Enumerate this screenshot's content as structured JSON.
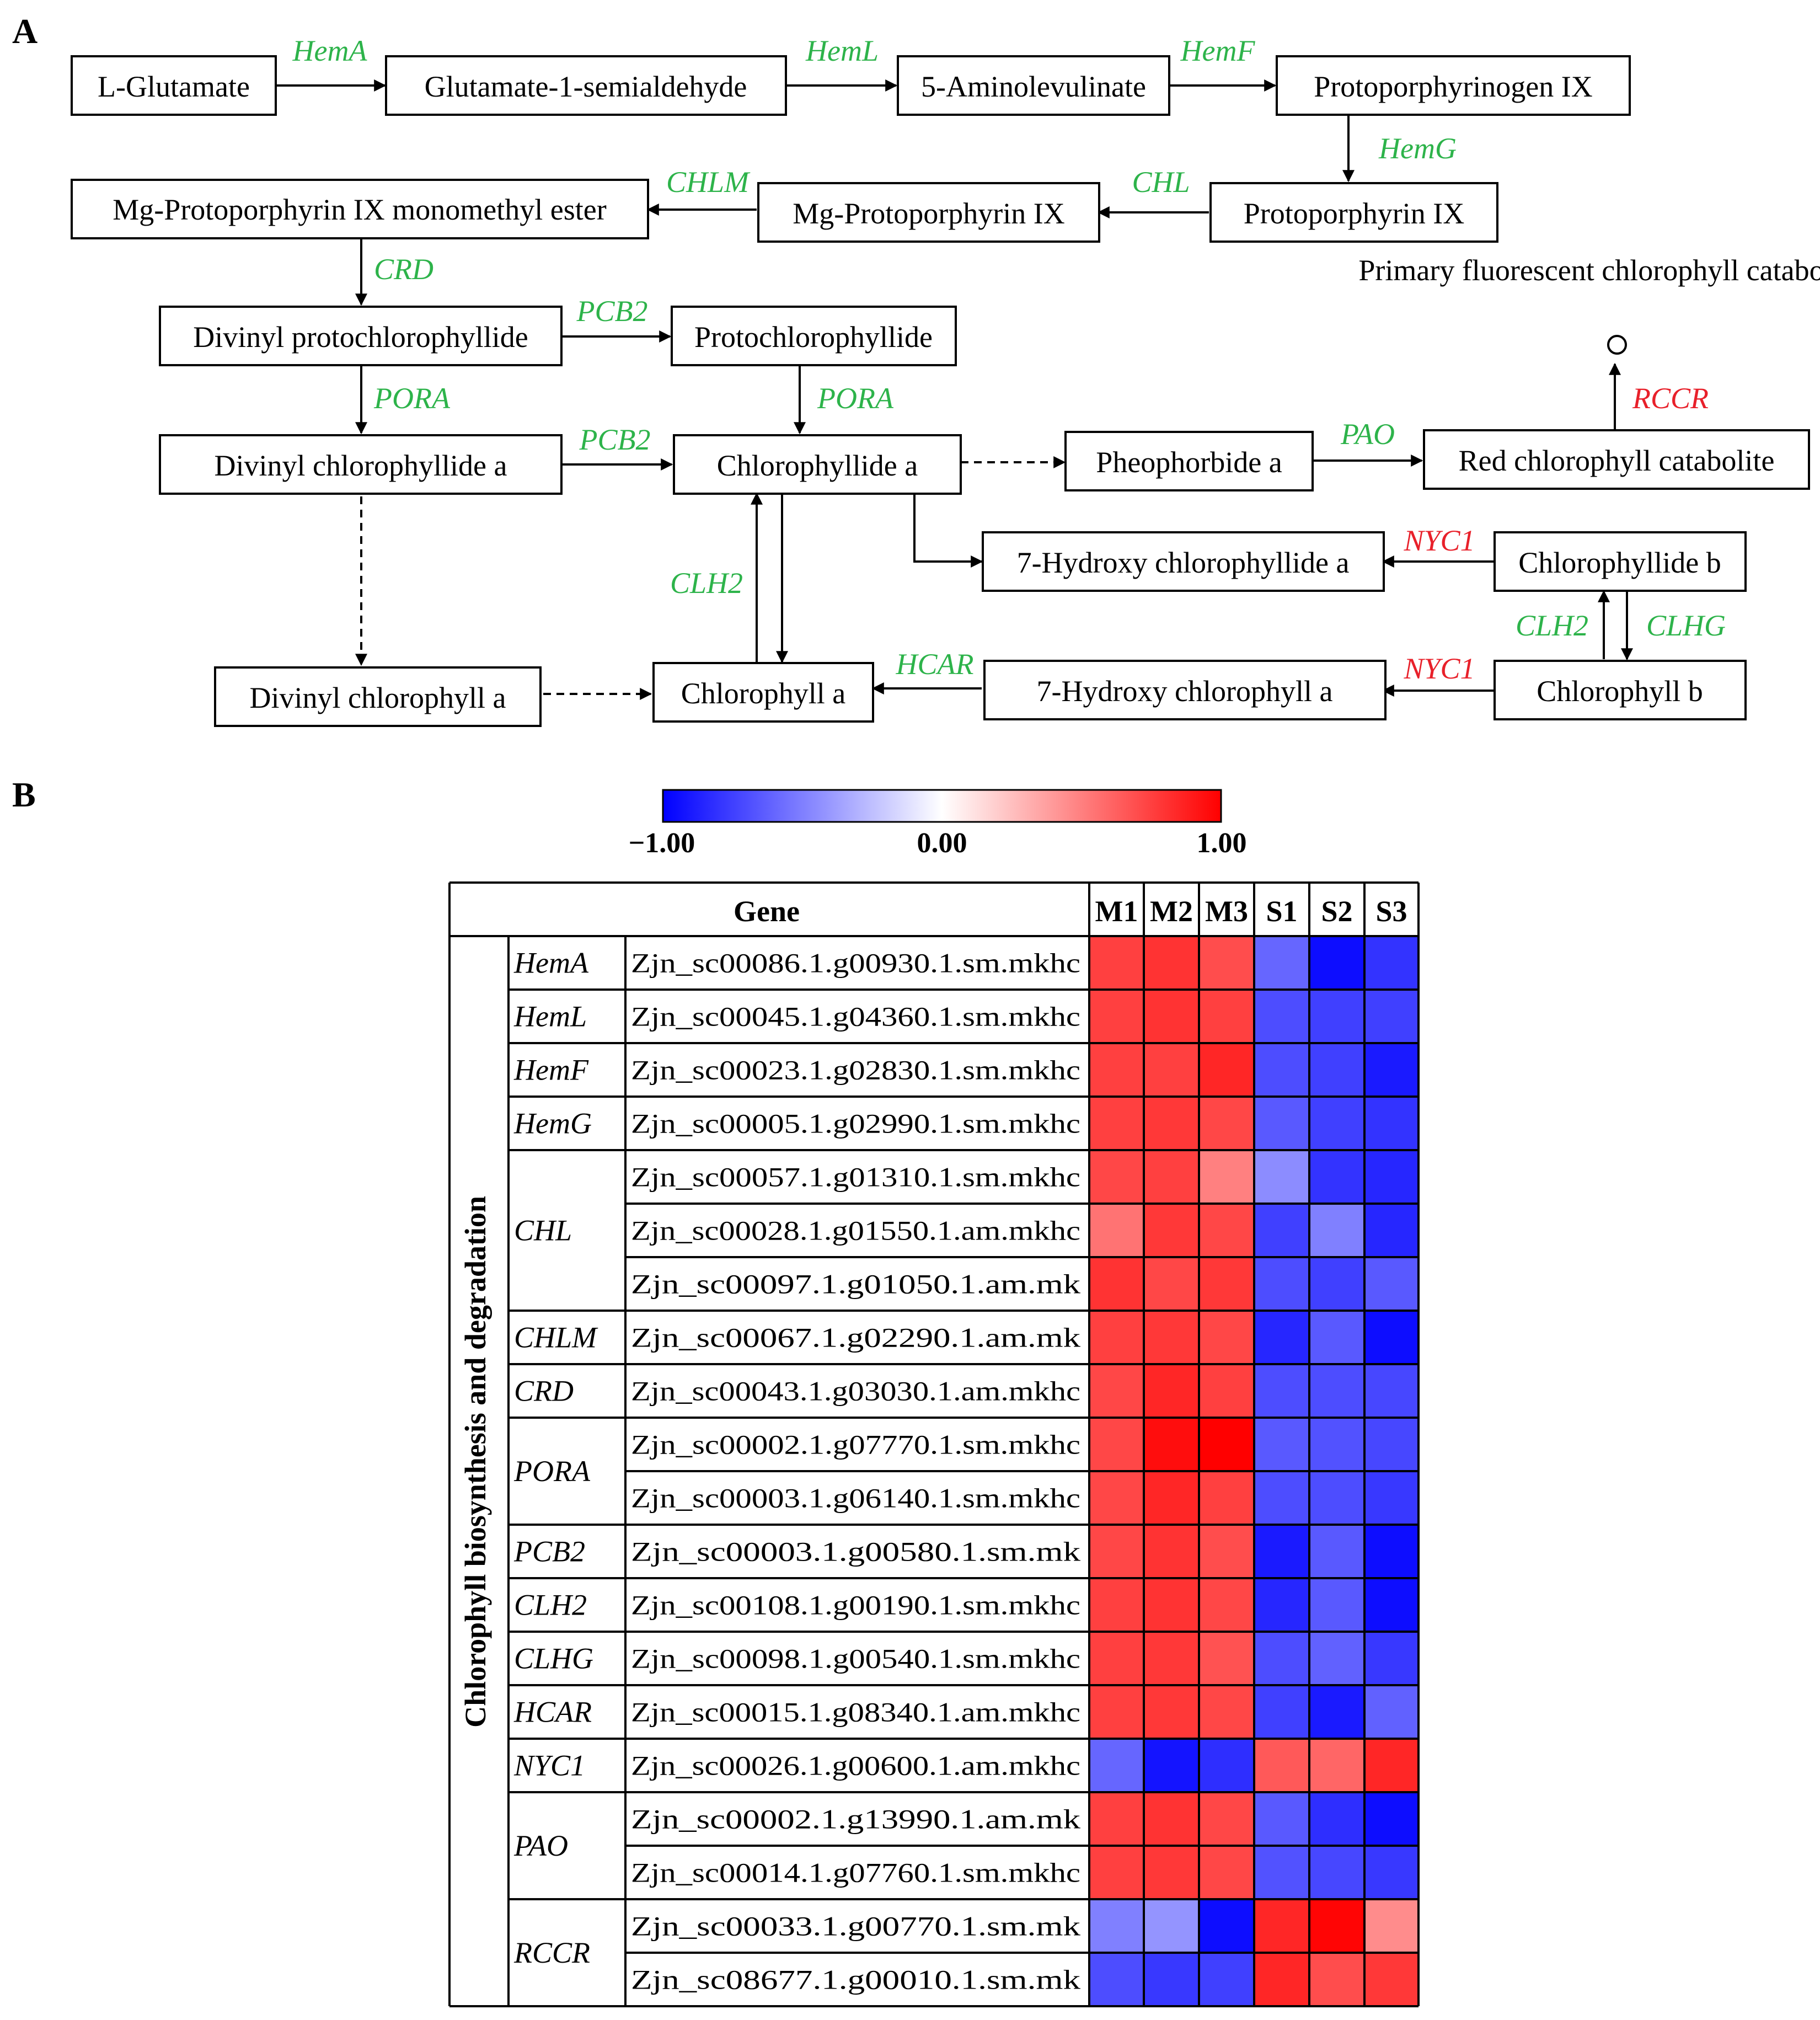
{
  "panels": {
    "a": "A",
    "b": "B"
  },
  "pathway": {
    "nodes": {
      "glu": "L-Glutamate",
      "gsa": "Glutamate-1-semialdehyde",
      "ala": "5-Aminolevulinate",
      "protogen": "Protoporphyrinogen IX",
      "proto": "Protoporphyrin IX",
      "mgproto": "Mg-Protoporphyrin IX",
      "mgprotome": "Mg-Protoporphyrin IX monomethyl ester",
      "dvpchlide": "Divinyl protochlorophyllide",
      "pchlide": "Protochlorophyllide",
      "dvchlidea": "Divinyl chlorophyllide a",
      "chlidea": "Chlorophyllide a",
      "pheo": "Pheophorbide a",
      "rcc": "Red chlorophyll catabolite",
      "pfcc": "Primary fluorescent chlorophyll catabolite",
      "hchlidea": "7-Hydroxy chlorophyllide a",
      "chlideb": "Chlorophyllide b",
      "dvchla": "Divinyl chlorophyll a",
      "chla": "Chlorophyll a",
      "hchla": "7-Hydroxy chlorophyll a",
      "chlb": "Chlorophyll b"
    },
    "enzymes": {
      "hema": "HemA",
      "heml": "HemL",
      "hemf": "HemF",
      "hemg": "HemG",
      "chl": "CHL",
      "chlm": "CHLM",
      "crd": "CRD",
      "pcb2a": "PCB2",
      "pcb2b": "PCB2",
      "poraa": "PORA",
      "porab": "PORA",
      "pao": "PAO",
      "rccr": "RCCR",
      "nyc1a": "NYC1",
      "nyc1b": "NYC1",
      "clh2a": "CLH2",
      "clhga": "CLHG",
      "clh2b": "CLH2",
      "clhgb": "CLHG",
      "hcar": "HCAR"
    },
    "colors": {
      "green": "#2db34a",
      "red": "#e8202a"
    }
  },
  "heatmap": {
    "colorbar": {
      "min": -1.0,
      "mid": 0.0,
      "max": 1.0,
      "min_label": "−1.00",
      "mid_label": "0.00",
      "max_label": "1.00",
      "low_color": "#0000ff",
      "mid_color": "#ffffff",
      "high_color": "#ff0000"
    },
    "header": {
      "gene": "Gene",
      "samples": [
        "M1",
        "M2",
        "M3",
        "S1",
        "S2",
        "S3"
      ]
    },
    "side_label": "Chlorophyll biosynthesis and degradation",
    "groups": [
      {
        "gene": "HemA",
        "rows": [
          0
        ]
      },
      {
        "gene": "HemL",
        "rows": [
          1
        ]
      },
      {
        "gene": "HemF",
        "rows": [
          2
        ]
      },
      {
        "gene": "HemG",
        "rows": [
          3
        ]
      },
      {
        "gene": "CHL",
        "rows": [
          4,
          5,
          6
        ]
      },
      {
        "gene": "CHLM",
        "rows": [
          7
        ]
      },
      {
        "gene": "CRD",
        "rows": [
          8
        ]
      },
      {
        "gene": "PORA",
        "rows": [
          9,
          10
        ]
      },
      {
        "gene": "PCB2",
        "rows": [
          11
        ]
      },
      {
        "gene": "CLH2",
        "rows": [
          12
        ]
      },
      {
        "gene": "CLHG",
        "rows": [
          13
        ]
      },
      {
        "gene": "HCAR",
        "rows": [
          14
        ]
      },
      {
        "gene": "NYC1",
        "rows": [
          15
        ]
      },
      {
        "gene": "PAO",
        "rows": [
          16,
          17
        ]
      },
      {
        "gene": "RCCR",
        "rows": [
          18,
          19
        ]
      }
    ],
    "rows": [
      {
        "id": "Zjn_sc00086.1.g00930.1.sm.mkhc",
        "values": [
          0.75,
          0.8,
          0.7,
          -0.6,
          -0.95,
          -0.8
        ]
      },
      {
        "id": "Zjn_sc00045.1.g04360.1.sm.mkhc",
        "values": [
          0.75,
          0.8,
          0.75,
          -0.7,
          -0.75,
          -0.75
        ]
      },
      {
        "id": "Zjn_sc00023.1.g02830.1.sm.mkhc",
        "values": [
          0.75,
          0.75,
          0.85,
          -0.7,
          -0.75,
          -0.9
        ]
      },
      {
        "id": "Zjn_sc00005.1.g02990.1.sm.mkhc",
        "values": [
          0.75,
          0.78,
          0.72,
          -0.65,
          -0.75,
          -0.8
        ]
      },
      {
        "id": "Zjn_sc00057.1.g01310.1.sm.mkhc",
        "values": [
          0.72,
          0.75,
          0.5,
          -0.45,
          -0.8,
          -0.85
        ]
      },
      {
        "id": "Zjn_sc00028.1.g01550.1.am.mkhc",
        "values": [
          0.55,
          0.78,
          0.72,
          -0.75,
          -0.5,
          -0.85
        ]
      },
      {
        "id": "Zjn_sc00097.1.g01050.1.am.mk",
        "values": [
          0.8,
          0.72,
          0.78,
          -0.7,
          -0.75,
          -0.65
        ]
      },
      {
        "id": "Zjn_sc00067.1.g02290.1.am.mk",
        "values": [
          0.75,
          0.78,
          0.72,
          -0.85,
          -0.65,
          -0.95
        ]
      },
      {
        "id": "Zjn_sc00043.1.g03030.1.am.mkhc",
        "values": [
          0.72,
          0.85,
          0.75,
          -0.7,
          -0.7,
          -0.72
        ]
      },
      {
        "id": "Zjn_sc00002.1.g07770.1.sm.mkhc",
        "values": [
          0.72,
          0.95,
          1.0,
          -0.65,
          -0.68,
          -0.72
        ]
      },
      {
        "id": "Zjn_sc00003.1.g06140.1.sm.mkhc",
        "values": [
          0.72,
          0.85,
          0.75,
          -0.7,
          -0.7,
          -0.78
        ]
      },
      {
        "id": "Zjn_sc00003.1.g00580.1.sm.mk",
        "values": [
          0.72,
          0.8,
          0.7,
          -0.9,
          -0.65,
          -0.95
        ]
      },
      {
        "id": "Zjn_sc00108.1.g00190.1.sm.mkhc",
        "values": [
          0.75,
          0.8,
          0.72,
          -0.85,
          -0.65,
          -0.95
        ]
      },
      {
        "id": "Zjn_sc00098.1.g00540.1.sm.mkhc",
        "values": [
          0.75,
          0.78,
          0.68,
          -0.7,
          -0.62,
          -0.78
        ]
      },
      {
        "id": "Zjn_sc00015.1.g08340.1.am.mkhc",
        "values": [
          0.75,
          0.78,
          0.72,
          -0.75,
          -0.9,
          -0.62
        ]
      },
      {
        "id": "Zjn_sc00026.1.g00600.1.am.mkhc",
        "values": [
          -0.6,
          -0.92,
          -0.82,
          0.65,
          0.6,
          0.85
        ]
      },
      {
        "id": "Zjn_sc00002.1.g13990.1.am.mk",
        "values": [
          0.75,
          0.8,
          0.72,
          -0.65,
          -0.82,
          -0.95
        ]
      },
      {
        "id": "Zjn_sc00014.1.g07760.1.sm.mkhc",
        "values": [
          0.75,
          0.78,
          0.72,
          -0.68,
          -0.72,
          -0.78
        ]
      },
      {
        "id": "Zjn_sc00033.1.g00770.1.sm.mk",
        "values": [
          -0.5,
          -0.42,
          -0.95,
          0.85,
          0.98,
          0.45
        ]
      },
      {
        "id": "Zjn_sc08677.1.g00010.1.sm.mk",
        "values": [
          -0.7,
          -0.78,
          -0.75,
          0.85,
          0.7,
          0.78
        ]
      }
    ]
  }
}
